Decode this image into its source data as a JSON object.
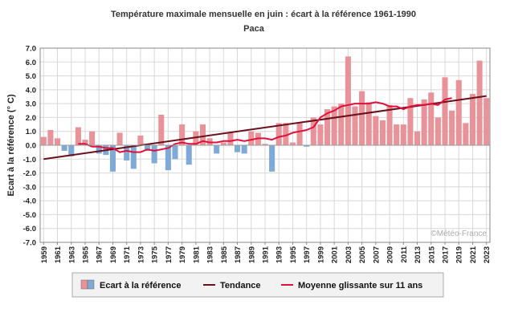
{
  "title": "Température maximale mensuelle en juin : écart à la référence 1961-1990",
  "subtitle": "Paca",
  "watermark": "©Météo-France",
  "colors": {
    "positive_bar": "#e8939a",
    "negative_bar": "#7fa9d6",
    "trend": "#6b0f1a",
    "moving_avg": "#e0103c",
    "grid": "#d8d8d8"
  },
  "chart_data": {
    "type": "bar",
    "title": "Température maximale mensuelle en juin : écart à la référence 1961-1990",
    "subtitle": "Paca",
    "xlabel": "",
    "ylabel": "Ecart à la référence (° C)",
    "ylim": [
      -7.0,
      7.0
    ],
    "yticks": [
      "7.0",
      "6.0",
      "5.0",
      "4.0",
      "3.0",
      "2.0",
      "1.0",
      "0.0",
      "-1.0",
      "-2.0",
      "-3.0",
      "-4.0",
      "-5.0",
      "-6.0",
      "-7.0"
    ],
    "ytick_values": [
      7,
      6,
      5,
      4,
      3,
      2,
      1,
      0,
      -1,
      -2,
      -3,
      -4,
      -5,
      -6,
      -7
    ],
    "grid": true,
    "legend_position": "bottom",
    "xtick_labels": [
      "1959",
      "1961",
      "1963",
      "1965",
      "1967",
      "1969",
      "1971",
      "1973",
      "1975",
      "1977",
      "1979",
      "1981",
      "1983",
      "1985",
      "1987",
      "1989",
      "1991",
      "1993",
      "1995",
      "1997",
      "1999",
      "2001",
      "2003",
      "2005",
      "2007",
      "2009",
      "2011",
      "2013",
      "2015",
      "2017",
      "2019",
      "2021",
      "2023"
    ],
    "categories": [
      1959,
      1960,
      1961,
      1962,
      1963,
      1964,
      1965,
      1966,
      1967,
      1968,
      1969,
      1970,
      1971,
      1972,
      1973,
      1974,
      1975,
      1976,
      1977,
      1978,
      1979,
      1980,
      1981,
      1982,
      1983,
      1984,
      1985,
      1986,
      1987,
      1988,
      1989,
      1990,
      1991,
      1992,
      1993,
      1994,
      1995,
      1996,
      1997,
      1998,
      1999,
      2000,
      2001,
      2002,
      2003,
      2004,
      2005,
      2006,
      2007,
      2008,
      2009,
      2010,
      2011,
      2012,
      2013,
      2014,
      2015,
      2016,
      2017,
      2018,
      2019,
      2020,
      2021,
      2022,
      2023
    ],
    "series": [
      {
        "name": "Ecart à la référence",
        "type": "bar",
        "values": [
          0.6,
          1.1,
          0.5,
          -0.4,
          -0.8,
          1.3,
          0.4,
          1.0,
          -0.6,
          -0.7,
          -1.9,
          0.9,
          -1.1,
          -1.7,
          0.7,
          -0.4,
          -1.3,
          2.2,
          -1.8,
          -1.0,
          1.5,
          -1.4,
          1.0,
          1.5,
          0.5,
          -0.6,
          0.2,
          0.9,
          -0.5,
          -0.6,
          1.0,
          0.9,
          0.1,
          -1.9,
          1.6,
          1.6,
          0.2,
          1.6,
          -0.1,
          2.0,
          1.5,
          2.6,
          2.8,
          3.0,
          6.4,
          2.8,
          3.9,
          3.1,
          2.1,
          1.8,
          2.9,
          1.5,
          1.5,
          3.4,
          1.0,
          3.3,
          3.8,
          2.0,
          4.9,
          2.5,
          4.7,
          1.6,
          3.7,
          6.1,
          3.4
        ]
      },
      {
        "name": "Tendance",
        "type": "line",
        "x": [
          1959,
          2023
        ],
        "values": [
          -1.0,
          3.55
        ]
      },
      {
        "name": "Moyenne glissante sur 11 ans",
        "type": "line",
        "x": [
          1964,
          1965,
          1966,
          1967,
          1968,
          1969,
          1970,
          1971,
          1972,
          1973,
          1974,
          1975,
          1976,
          1977,
          1978,
          1979,
          1980,
          1981,
          1982,
          1983,
          1984,
          1985,
          1986,
          1987,
          1988,
          1989,
          1990,
          1991,
          1992,
          1993,
          1994,
          1995,
          1996,
          1997,
          1998,
          1999,
          2000,
          2001,
          2002,
          2003,
          2004,
          2005,
          2006,
          2007,
          2008,
          2009,
          2010,
          2011,
          2012,
          2013,
          2014,
          2015,
          2016,
          2017,
          2018
        ],
        "values": [
          0.1,
          0.1,
          -0.1,
          -0.1,
          -0.2,
          -0.2,
          -0.5,
          -0.4,
          -0.5,
          -0.5,
          -0.3,
          -0.4,
          -0.3,
          -0.2,
          0.1,
          0.2,
          0.1,
          0.1,
          0.3,
          0.2,
          0.2,
          0.3,
          0.3,
          0.4,
          0.3,
          0.4,
          0.5,
          0.5,
          0.4,
          0.6,
          0.7,
          0.9,
          1.0,
          1.1,
          1.3,
          2.0,
          2.3,
          2.5,
          2.8,
          2.9,
          3.0,
          3.0,
          3.0,
          3.1,
          3.0,
          2.8,
          2.8,
          2.6,
          2.8,
          2.9,
          2.9,
          3.0,
          2.9,
          3.3,
          3.4
        ]
      }
    ]
  }
}
